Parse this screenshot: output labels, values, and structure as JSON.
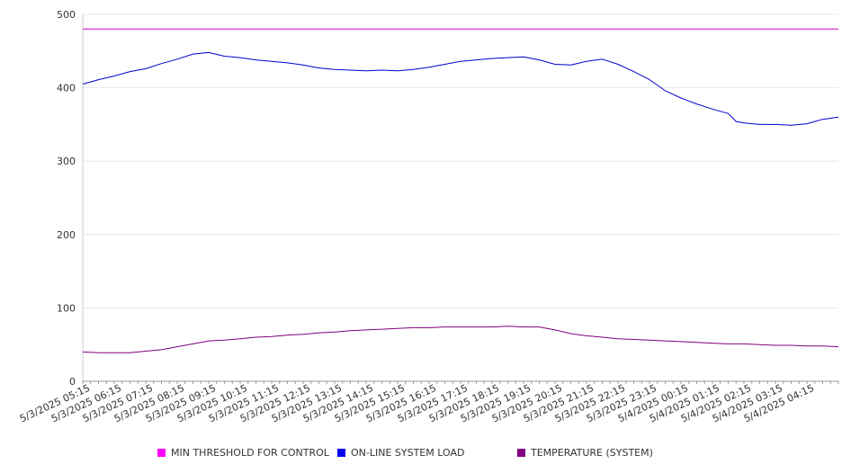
{
  "chart_data": {
    "type": "line",
    "title": "",
    "xlabel": "",
    "ylabel": "",
    "ylim": [
      0,
      500
    ],
    "yticks": [
      0,
      100,
      200,
      300,
      400,
      500
    ],
    "grid": "horizontal",
    "legend_position": "bottom",
    "x_tick_labels": [
      "5/3/2025 05:15",
      "5/3/2025 06:15",
      "5/3/2025 07:15",
      "5/3/2025 08:15",
      "5/3/2025 09:15",
      "5/3/2025 10:15",
      "5/3/2025 11:15",
      "5/3/2025 12:15",
      "5/3/2025 13:15",
      "5/3/2025 14:15",
      "5/3/2025 15:15",
      "5/3/2025 16:15",
      "5/3/2025 17:15",
      "5/3/2025 18:15",
      "5/3/2025 19:15",
      "5/3/2025 20:15",
      "5/3/2025 21:15",
      "5/3/2025 22:15",
      "5/3/2025 23:15",
      "5/4/2025 00:15",
      "5/4/2025 01:15",
      "5/4/2025 02:15",
      "5/4/2025 03:15",
      "5/4/2025 04:15"
    ],
    "series": [
      {
        "name": "MIN THRESHOLD FOR CONTROL",
        "color": "#cc00cc",
        "points": [
          [
            "5/3/2025 05:00",
            480
          ],
          [
            "5/4/2025 05:00",
            480
          ]
        ]
      },
      {
        "name": "ON-LINE SYSTEM LOAD",
        "color": "#0000cc",
        "points": [
          [
            "5/3/2025 05:00",
            405
          ],
          [
            "5/3/2025 05:30",
            411
          ],
          [
            "5/3/2025 06:00",
            416
          ],
          [
            "5/3/2025 06:30",
            422
          ],
          [
            "5/3/2025 07:00",
            426
          ],
          [
            "5/3/2025 07:30",
            433
          ],
          [
            "5/3/2025 08:00",
            439
          ],
          [
            "5/3/2025 08:30",
            446
          ],
          [
            "5/3/2025 09:00",
            448
          ],
          [
            "5/3/2025 09:30",
            443
          ],
          [
            "5/3/2025 10:00",
            441
          ],
          [
            "5/3/2025 10:30",
            438
          ],
          [
            "5/3/2025 11:00",
            436
          ],
          [
            "5/3/2025 11:30",
            434
          ],
          [
            "5/3/2025 12:00",
            431
          ],
          [
            "5/3/2025 12:30",
            427
          ],
          [
            "5/3/2025 13:00",
            425
          ],
          [
            "5/3/2025 13:30",
            424
          ],
          [
            "5/3/2025 14:00",
            423
          ],
          [
            "5/3/2025 14:30",
            424
          ],
          [
            "5/3/2025 15:00",
            423
          ],
          [
            "5/3/2025 15:30",
            425
          ],
          [
            "5/3/2025 16:00",
            428
          ],
          [
            "5/3/2025 16:30",
            432
          ],
          [
            "5/3/2025 17:00",
            436
          ],
          [
            "5/3/2025 17:30",
            438
          ],
          [
            "5/3/2025 18:00",
            440
          ],
          [
            "5/3/2025 18:30",
            441
          ],
          [
            "5/3/2025 19:00",
            442
          ],
          [
            "5/3/2025 19:30",
            438
          ],
          [
            "5/3/2025 20:00",
            432
          ],
          [
            "5/3/2025 20:30",
            431
          ],
          [
            "5/3/2025 21:00",
            436
          ],
          [
            "5/3/2025 21:30",
            439
          ],
          [
            "5/3/2025 22:00",
            432
          ],
          [
            "5/3/2025 22:30",
            422
          ],
          [
            "5/3/2025 23:00",
            411
          ],
          [
            "5/3/2025 23:30",
            396
          ],
          [
            "5/4/2025 00:00",
            386
          ],
          [
            "5/4/2025 00:30",
            378
          ],
          [
            "5/4/2025 01:00",
            371
          ],
          [
            "5/4/2025 01:30",
            365
          ],
          [
            "5/4/2025 01:45",
            354
          ],
          [
            "5/4/2025 02:00",
            352
          ],
          [
            "5/4/2025 02:30",
            350
          ],
          [
            "5/4/2025 03:00",
            350
          ],
          [
            "5/4/2025 03:30",
            349
          ],
          [
            "5/4/2025 04:00",
            351
          ],
          [
            "5/4/2025 04:30",
            357
          ],
          [
            "5/4/2025 05:00",
            360
          ]
        ]
      },
      {
        "name": "TEMPERATURE (SYSTEM)",
        "color": "#800080",
        "points": [
          [
            "5/3/2025 05:00",
            40
          ],
          [
            "5/3/2025 05:30",
            39
          ],
          [
            "5/3/2025 06:00",
            39
          ],
          [
            "5/3/2025 06:30",
            39
          ],
          [
            "5/3/2025 07:00",
            41
          ],
          [
            "5/3/2025 07:30",
            43
          ],
          [
            "5/3/2025 08:00",
            47
          ],
          [
            "5/3/2025 08:30",
            51
          ],
          [
            "5/3/2025 09:00",
            55
          ],
          [
            "5/3/2025 09:30",
            56
          ],
          [
            "5/3/2025 10:00",
            58
          ],
          [
            "5/3/2025 10:30",
            60
          ],
          [
            "5/3/2025 11:00",
            61
          ],
          [
            "5/3/2025 11:30",
            63
          ],
          [
            "5/3/2025 12:00",
            64
          ],
          [
            "5/3/2025 12:30",
            66
          ],
          [
            "5/3/2025 13:00",
            67
          ],
          [
            "5/3/2025 13:30",
            69
          ],
          [
            "5/3/2025 14:00",
            70
          ],
          [
            "5/3/2025 14:30",
            71
          ],
          [
            "5/3/2025 15:00",
            72
          ],
          [
            "5/3/2025 15:30",
            73
          ],
          [
            "5/3/2025 16:00",
            73
          ],
          [
            "5/3/2025 16:30",
            74
          ],
          [
            "5/3/2025 17:00",
            74
          ],
          [
            "5/3/2025 17:30",
            74
          ],
          [
            "5/3/2025 18:00",
            74
          ],
          [
            "5/3/2025 18:30",
            75
          ],
          [
            "5/3/2025 19:00",
            74
          ],
          [
            "5/3/2025 19:30",
            74
          ],
          [
            "5/3/2025 20:00",
            70
          ],
          [
            "5/3/2025 20:30",
            65
          ],
          [
            "5/3/2025 21:00",
            62
          ],
          [
            "5/3/2025 21:30",
            60
          ],
          [
            "5/3/2025 22:00",
            58
          ],
          [
            "5/3/2025 22:30",
            57
          ],
          [
            "5/3/2025 23:00",
            56
          ],
          [
            "5/3/2025 23:30",
            55
          ],
          [
            "5/4/2025 00:00",
            54
          ],
          [
            "5/4/2025 00:30",
            53
          ],
          [
            "5/4/2025 01:00",
            52
          ],
          [
            "5/4/2025 01:30",
            51
          ],
          [
            "5/4/2025 02:00",
            51
          ],
          [
            "5/4/2025 02:30",
            50
          ],
          [
            "5/4/2025 03:00",
            49
          ],
          [
            "5/4/2025 03:30",
            49
          ],
          [
            "5/4/2025 04:00",
            48
          ],
          [
            "5/4/2025 04:30",
            48
          ],
          [
            "5/4/2025 05:00",
            47
          ]
        ]
      }
    ]
  }
}
